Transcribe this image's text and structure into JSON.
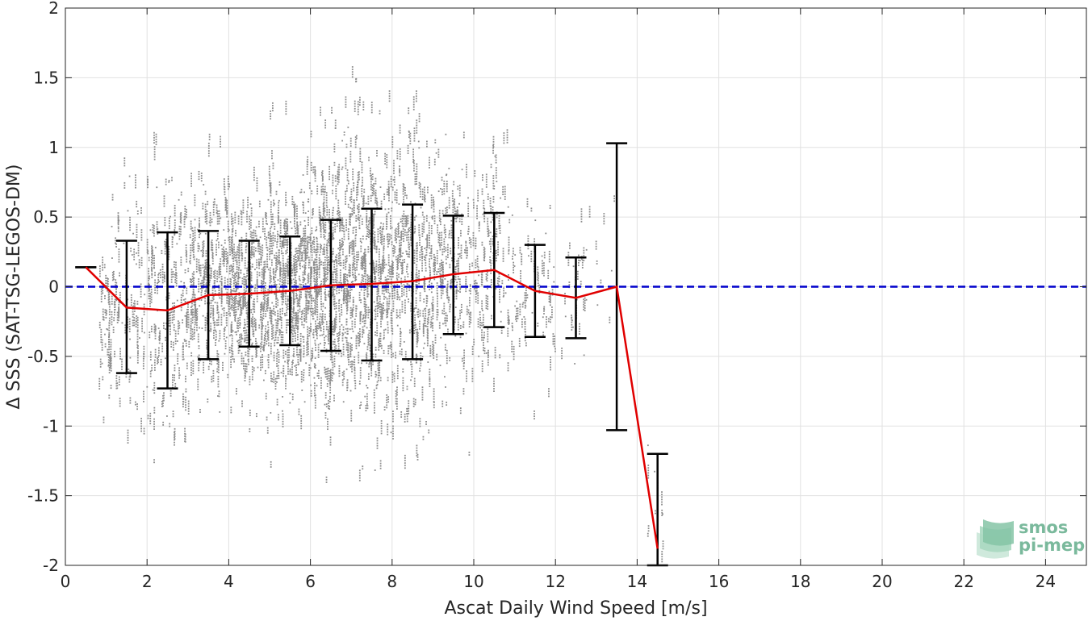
{
  "chart_data": {
    "type": "scatter",
    "xlabel": "Ascat Daily Wind Speed [m/s]",
    "ylabel": "Δ SSS (SAT-TSG-LEGOS-DM)",
    "xlim": [
      0,
      25
    ],
    "ylim": [
      -2,
      2
    ],
    "x_ticks": [
      "0",
      "2",
      "4",
      "6",
      "8",
      "10",
      "12",
      "14",
      "16",
      "18",
      "20",
      "22",
      "24"
    ],
    "y_ticks": [
      "2",
      "1.5",
      "1",
      "0.5",
      "0",
      "-0.5",
      "-1",
      "-1.5",
      "-2"
    ],
    "grid": true,
    "reference_line": {
      "y": 0,
      "style": "dashed",
      "color": "#0000cc"
    },
    "binned_mean": {
      "color": "#e00000",
      "x": [
        0.5,
        1.5,
        2.5,
        3.5,
        4.5,
        5.5,
        6.5,
        7.5,
        8.5,
        9.5,
        10.5,
        11.5,
        12.5,
        13.5,
        14.5
      ],
      "mean": [
        0.14,
        -0.15,
        -0.17,
        -0.06,
        -0.05,
        -0.03,
        0.01,
        0.02,
        0.04,
        0.09,
        0.12,
        -0.03,
        -0.08,
        0.0,
        -1.88
      ],
      "upper": [
        0.14,
        0.33,
        0.39,
        0.4,
        0.33,
        0.36,
        0.48,
        0.56,
        0.59,
        0.51,
        0.53,
        0.3,
        0.21,
        1.03,
        -1.2
      ],
      "lower": [
        0.14,
        -0.62,
        -0.73,
        -0.52,
        -0.43,
        -0.42,
        -0.46,
        -0.53,
        -0.52,
        -0.34,
        -0.29,
        -0.36,
        -0.37,
        -1.03,
        -2.0
      ]
    },
    "scatter_color": "#8c8c8c",
    "scatter_clusters": [
      {
        "x": 1.0,
        "spread": 0.2,
        "mean": -0.25,
        "sd": 0.3,
        "n": 40
      },
      {
        "x": 1.5,
        "spread": 0.45,
        "mean": -0.15,
        "sd": 0.4,
        "n": 110
      },
      {
        "x": 2.5,
        "spread": 0.5,
        "mean": -0.17,
        "sd": 0.45,
        "n": 190
      },
      {
        "x": 3.5,
        "spread": 0.5,
        "mean": -0.06,
        "sd": 0.4,
        "n": 260
      },
      {
        "x": 4.5,
        "spread": 0.5,
        "mean": -0.05,
        "sd": 0.36,
        "n": 330
      },
      {
        "x": 5.5,
        "spread": 0.5,
        "mean": -0.03,
        "sd": 0.38,
        "n": 420
      },
      {
        "x": 6.5,
        "spread": 0.5,
        "mean": 0.01,
        "sd": 0.45,
        "n": 450
      },
      {
        "x": 7.5,
        "spread": 0.5,
        "mean": 0.02,
        "sd": 0.5,
        "n": 380
      },
      {
        "x": 8.5,
        "spread": 0.5,
        "mean": 0.04,
        "sd": 0.52,
        "n": 300
      },
      {
        "x": 9.5,
        "spread": 0.5,
        "mean": 0.09,
        "sd": 0.42,
        "n": 200
      },
      {
        "x": 10.5,
        "spread": 0.5,
        "mean": 0.12,
        "sd": 0.4,
        "n": 130
      },
      {
        "x": 11.5,
        "spread": 0.5,
        "mean": -0.03,
        "sd": 0.33,
        "n": 70
      },
      {
        "x": 12.5,
        "spread": 0.35,
        "mean": -0.08,
        "sd": 0.29,
        "n": 30
      },
      {
        "x": 13.2,
        "spread": 0.3,
        "mean": 0.3,
        "sd": 0.3,
        "n": 8
      },
      {
        "x": 14.5,
        "spread": 0.25,
        "mean": -1.45,
        "sd": 0.25,
        "n": 12
      }
    ]
  },
  "logo": {
    "line1": "smos",
    "line2": "pi-mep",
    "color": "#7ab99c"
  }
}
